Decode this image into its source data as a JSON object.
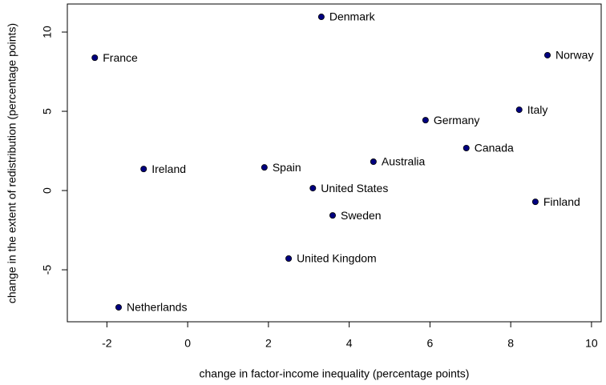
{
  "chart_data": {
    "type": "scatter",
    "xlabel": "change in factor-income inequality (percentage points)",
    "ylabel": "change in the extent of redistribution (percentage points)",
    "labels": [
      "France",
      "Denmark",
      "Norway",
      "Italy",
      "Germany",
      "Canada",
      "Ireland",
      "Spain",
      "Australia",
      "United States",
      "Finland",
      "Sweden",
      "United Kingdom",
      "Netherlands"
    ],
    "x": [
      -2.3,
      3.31,
      8.91,
      8.21,
      5.89,
      6.9,
      -1.09,
      1.9,
      4.6,
      3.1,
      8.61,
      3.59,
      2.5,
      -1.71
    ],
    "values": [
      8.38,
      10.96,
      8.54,
      5.1,
      4.44,
      2.68,
      1.36,
      1.46,
      1.82,
      0.15,
      -0.71,
      -1.57,
      -4.29,
      -7.37
    ],
    "color": "#000080",
    "xlim": [
      -2.98,
      10.24
    ],
    "xticks": [
      -2,
      0,
      2,
      4,
      6,
      8,
      10
    ],
    "ylim": [
      -8.28,
      11.77
    ],
    "yticks": [
      -5,
      0,
      5,
      10
    ]
  }
}
